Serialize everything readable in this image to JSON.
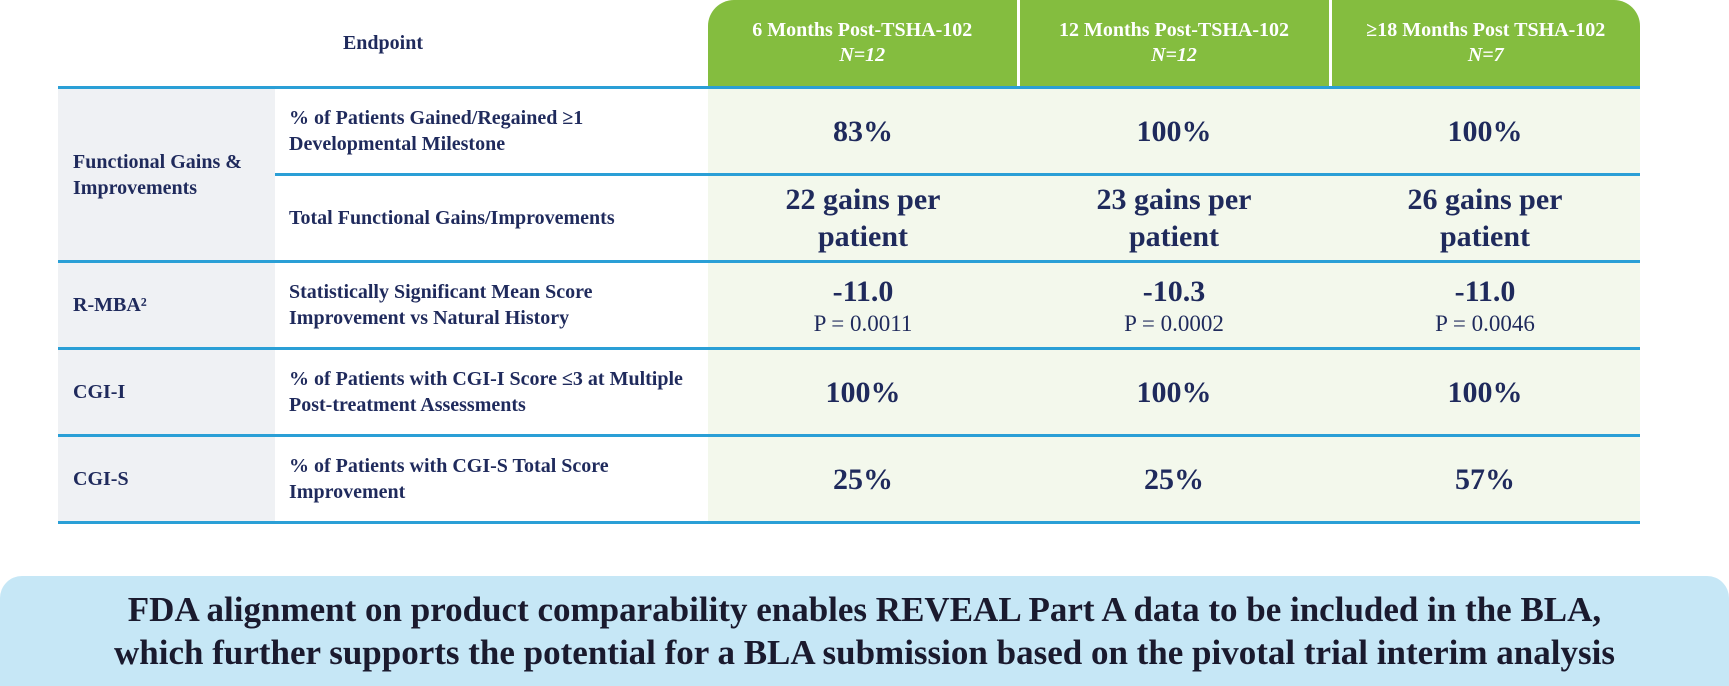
{
  "header": {
    "endpoint": "Endpoint",
    "columns": [
      {
        "title": "6 Months Post-TSHA-102",
        "n": "N=12"
      },
      {
        "title": "12 Months Post-TSHA-102",
        "n": "N=12"
      },
      {
        "title": "≥18 Months Post TSHA-102",
        "n": "N=7"
      }
    ]
  },
  "groups": [
    {
      "label": "Functional Gains & Improvements",
      "rows": [
        {
          "endpoint": "% of Patients Gained/Regained ≥1 Developmental Milestone",
          "cells": [
            {
              "value": "83%"
            },
            {
              "value": "100%"
            },
            {
              "value": "100%"
            }
          ]
        },
        {
          "endpoint": "Total Functional Gains/Improvements",
          "cells": [
            {
              "value": "22 gains per patient"
            },
            {
              "value": "23 gains per patient"
            },
            {
              "value": "26 gains per patient"
            }
          ]
        }
      ]
    },
    {
      "label": "R-MBA²",
      "rows": [
        {
          "endpoint": "Statistically Significant Mean Score Improvement vs Natural History",
          "cells": [
            {
              "value": "-11.0",
              "p": "P = 0.0011"
            },
            {
              "value": "-10.3",
              "p": "P = 0.0002"
            },
            {
              "value": "-11.0",
              "p": "P = 0.0046"
            }
          ]
        }
      ]
    },
    {
      "label": "CGI-I",
      "rows": [
        {
          "endpoint": "% of Patients with CGI-I Score ≤3 at Multiple Post-treatment Assessments",
          "cells": [
            {
              "value": "100%"
            },
            {
              "value": "100%"
            },
            {
              "value": "100%"
            }
          ]
        }
      ]
    },
    {
      "label": "CGI-S",
      "rows": [
        {
          "endpoint": "% of Patients with CGI-S Total Score Improvement",
          "cells": [
            {
              "value": "25%"
            },
            {
              "value": "25%"
            },
            {
              "value": "57%"
            }
          ]
        }
      ]
    }
  ],
  "banner": {
    "lines": [
      "FDA alignment on product comparability enables REVEAL Part A data to be included in the BLA,",
      "which further supports the potential for a BLA submission based on the pivotal trial interim analysis"
    ]
  }
}
